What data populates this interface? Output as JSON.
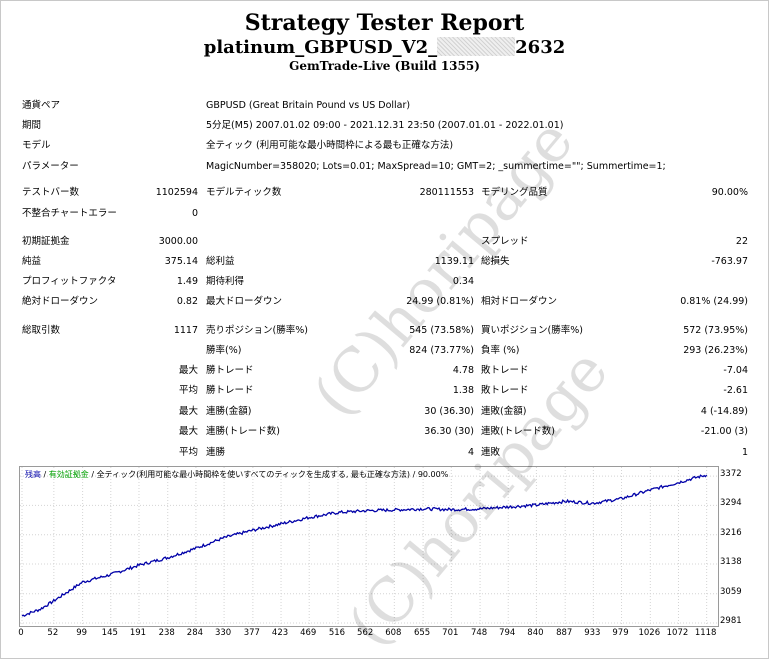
{
  "title": "Strategy Tester Report",
  "subtitle_prefix": "platinum_GBPUSD_V2_",
  "subtitle_suffix": "2632",
  "server": "GemTrade-Live (Build 1355)",
  "info": [
    {
      "label": "通貨ペア",
      "value": "GBPUSD (Great Britain Pound vs US Dollar)"
    },
    {
      "label": "期間",
      "value": "5分足(M5) 2007.01.02 09:00 - 2021.12.31 23:50 (2007.01.01 - 2022.01.01)"
    },
    {
      "label": "モデル",
      "value": "全ティック (利用可能な最小時間枠による最も正確な方法)"
    },
    {
      "label": "パラメーター",
      "value": "MagicNumber=358020; Lots=0.01; MaxSpread=10; GMT=2; _summertime=\"\"; Summertime=1;"
    }
  ],
  "stats": {
    "bars_label": "テストバー数",
    "bars": "1102594",
    "ticks_label": "モデルティック数",
    "ticks": "280111553",
    "quality_label": "モデリング品質",
    "quality": "90.00%",
    "errors_label": "不整合チャートエラー",
    "errors": "0",
    "deposit_label": "初期証拠金",
    "deposit": "3000.00",
    "spread_label": "スプレッド",
    "spread": "22",
    "net_label": "純益",
    "net": "375.14",
    "gross_profit_label": "総利益",
    "gross_profit": "1139.11",
    "gross_loss_label": "総損失",
    "gross_loss": "-763.97",
    "pf_label": "プロフィットファクタ",
    "pf": "1.49",
    "payoff_label": "期待利得",
    "payoff": "0.34",
    "abs_dd_label": "絶対ドローダウン",
    "abs_dd": "0.82",
    "max_dd_label": "最大ドローダウン",
    "max_dd": "24.99 (0.81%)",
    "rel_dd_label": "相対ドローダウン",
    "rel_dd": "0.81% (24.99)",
    "trades_label": "総取引数",
    "trades": "1117",
    "short_label": "売りポジション(勝率%)",
    "short": "545 (73.58%)",
    "long_label": "買いポジション(勝率%)",
    "long": "572 (73.95%)",
    "win_label": "勝率(%)",
    "win": "824 (73.77%)",
    "loss_label": "負率 (%)",
    "loss": "293 (26.23%)",
    "max_prefix": "最大",
    "avg_prefix": "平均",
    "largest_win_label": "勝トレード",
    "largest_win": "4.78",
    "largest_loss_label": "敗トレード",
    "largest_loss": "-7.04",
    "avg_win_label": "勝トレード",
    "avg_win": "1.38",
    "avg_loss_label": "敗トレード",
    "avg_loss": "-2.61",
    "cons_wins_money_label": "連勝(金額)",
    "cons_wins_money": "30 (36.30)",
    "cons_losses_money_label": "連敗(金額)",
    "cons_losses_money": "4 (-14.89)",
    "cons_wins_trades_label": "連勝(トレード数)",
    "cons_wins_trades": "36.30 (30)",
    "cons_losses_trades_label": "連敗(トレード数)",
    "cons_losses_trades": "-21.00 (3)",
    "avg_cons_wins_label": "連勝",
    "avg_cons_wins": "4",
    "avg_cons_losses_label": "連敗",
    "avg_cons_losses": "1"
  },
  "legend": {
    "balance": "残高",
    "sep1": " / ",
    "margin": "有効証拠金",
    "sep2": " / ",
    "model": "全ティック(利用可能な最小時間枠を使いすべてのティックを生成する, 最も正確な方法)",
    "sep3": " / ",
    "quality": "90.00%"
  },
  "colors": {
    "balance": "#0000a8",
    "margin": "#00a000",
    "grid": "#d4d4d4"
  },
  "watermark": "(C)horipage",
  "chart_data": {
    "type": "line",
    "x_ticks": [
      "0",
      "52",
      "99",
      "145",
      "191",
      "238",
      "284",
      "330",
      "377",
      "423",
      "469",
      "516",
      "562",
      "608",
      "655",
      "701",
      "748",
      "794",
      "840",
      "887",
      "933",
      "979",
      "1026",
      "1072",
      "1118"
    ],
    "y_ticks": [
      "3372",
      "3294",
      "3216",
      "3138",
      "3059",
      "2981"
    ],
    "ylim": [
      2981,
      3375
    ],
    "xlim": [
      0,
      1130
    ],
    "series": [
      {
        "name": "残高",
        "points": [
          [
            0,
            3000
          ],
          [
            30,
            3018
          ],
          [
            52,
            3040
          ],
          [
            99,
            3090
          ],
          [
            145,
            3110
          ],
          [
            191,
            3135
          ],
          [
            238,
            3155
          ],
          [
            284,
            3180
          ],
          [
            330,
            3208
          ],
          [
            377,
            3228
          ],
          [
            423,
            3245
          ],
          [
            469,
            3262
          ],
          [
            516,
            3275
          ],
          [
            562,
            3280
          ],
          [
            608,
            3282
          ],
          [
            655,
            3285
          ],
          [
            701,
            3283
          ],
          [
            748,
            3285
          ],
          [
            794,
            3290
          ],
          [
            840,
            3295
          ],
          [
            887,
            3305
          ],
          [
            933,
            3300
          ],
          [
            979,
            3312
          ],
          [
            1026,
            3335
          ],
          [
            1072,
            3355
          ],
          [
            1100,
            3368
          ],
          [
            1118,
            3375
          ]
        ]
      }
    ]
  }
}
